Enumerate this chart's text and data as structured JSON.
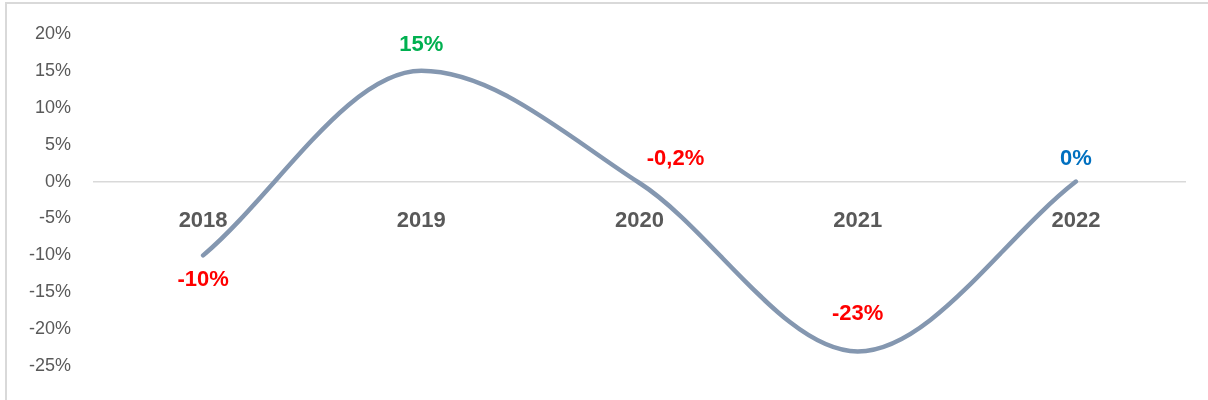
{
  "chart_data": {
    "type": "line",
    "categories": [
      "2018",
      "2019",
      "2020",
      "2021",
      "2022"
    ],
    "series": [
      {
        "color": "#8497b0",
        "values": [
          -10,
          15,
          -0.2,
          -23,
          0
        ],
        "value_labels": [
          "-10%",
          "15%",
          "-0,2%",
          "-23%",
          "0%"
        ],
        "colors": [
          "#ff0000",
          "#00b050",
          "#ff0000",
          "#ff0000",
          "#0070c0"
        ]
      }
    ],
    "ylim": [
      -25,
      20
    ],
    "yticks": [
      {
        "value": 20,
        "label": "20%"
      },
      {
        "value": 15,
        "label": "15%"
      },
      {
        "value": 10,
        "label": "10%"
      },
      {
        "value": 5,
        "label": "5%"
      },
      {
        "value": 0,
        "label": "0%"
      },
      {
        "value": -5,
        "label": "-5%"
      },
      {
        "value": -10,
        "label": "-10%"
      },
      {
        "value": -15,
        "label": "-15%"
      },
      {
        "value": -20,
        "label": "-20%"
      },
      {
        "value": -25,
        "label": "-25%"
      }
    ],
    "grid": false,
    "legend": false,
    "marker": "none",
    "line_style": "solid"
  }
}
